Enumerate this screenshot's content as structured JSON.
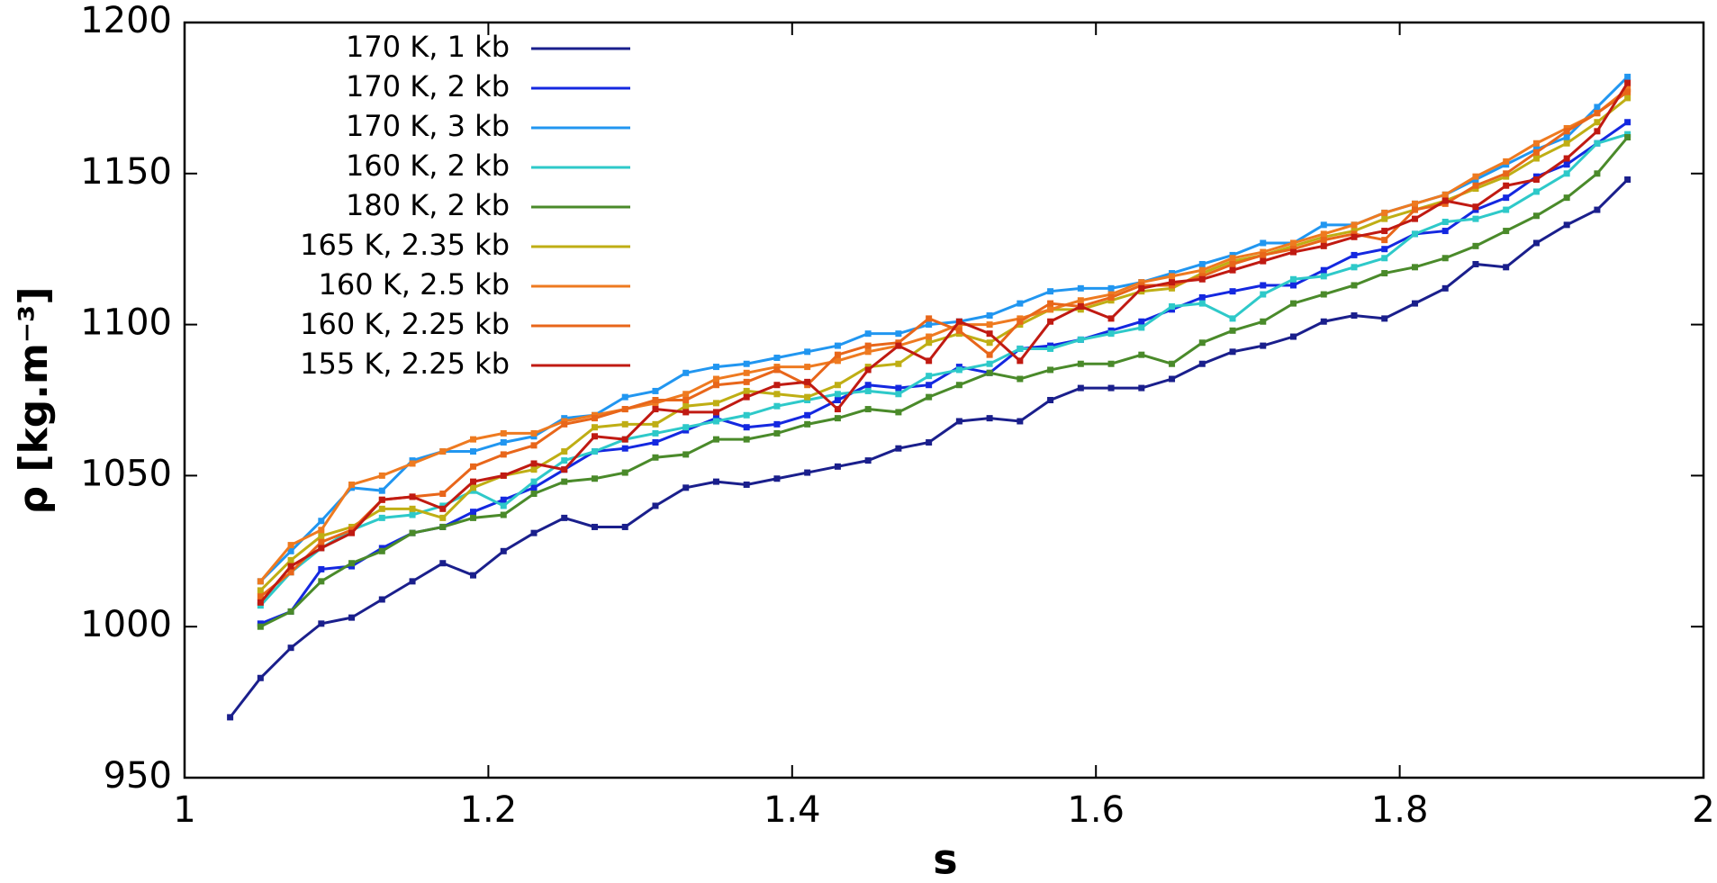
{
  "chart_data": {
    "type": "line",
    "xlabel": "s",
    "ylabel": "ρ [kg.m⁻³]",
    "x": [
      1.03,
      1.05,
      1.07,
      1.09,
      1.11,
      1.13,
      1.15,
      1.17,
      1.19,
      1.21,
      1.23,
      1.25,
      1.27,
      1.29,
      1.31,
      1.33,
      1.35,
      1.37,
      1.39,
      1.41,
      1.43,
      1.45,
      1.47,
      1.49,
      1.51,
      1.53,
      1.55,
      1.57,
      1.59,
      1.61,
      1.63,
      1.65,
      1.67,
      1.69,
      1.71,
      1.73,
      1.75,
      1.77,
      1.79,
      1.81,
      1.83,
      1.85,
      1.87,
      1.89,
      1.91,
      1.93,
      1.95
    ],
    "series": [
      {
        "name": "170 K, 1 kb",
        "color": "#1a1f8c",
        "values": [
          970,
          983,
          993,
          1001,
          1003,
          1009,
          1015,
          1021,
          1017,
          1025,
          1031,
          1036,
          1033,
          1033,
          1040,
          1046,
          1048,
          1047,
          1049,
          1051,
          1053,
          1055,
          1059,
          1061,
          1068,
          1069,
          1068,
          1075,
          1079,
          1079,
          1079,
          1082,
          1087,
          1091,
          1093,
          1096,
          1101,
          1103,
          1102,
          1107,
          1112,
          1120,
          1119,
          1127,
          1133,
          1138,
          1148
        ]
      },
      {
        "name": "170 K, 2 kb",
        "color": "#1428e0",
        "values": [
          null,
          1001,
          1005,
          1019,
          1020,
          1026,
          1031,
          1033,
          1038,
          1042,
          1046,
          1052,
          1058,
          1059,
          1061,
          1065,
          1069,
          1066,
          1067,
          1070,
          1075,
          1080,
          1079,
          1080,
          1086,
          1084,
          1092,
          1093,
          1095,
          1098,
          1101,
          1105,
          1109,
          1111,
          1113,
          1113,
          1118,
          1123,
          1125,
          1130,
          1131,
          1138,
          1142,
          1149,
          1153,
          1160,
          1167
        ]
      },
      {
        "name": "170 K, 3 kb",
        "color": "#2196f0",
        "values": [
          null,
          1015,
          1025,
          1035,
          1046,
          1045,
          1055,
          1058,
          1058,
          1061,
          1063,
          1069,
          1070,
          1076,
          1078,
          1084,
          1086,
          1087,
          1089,
          1091,
          1093,
          1097,
          1097,
          1100,
          1101,
          1103,
          1107,
          1111,
          1112,
          1112,
          1114,
          1117,
          1120,
          1123,
          1127,
          1127,
          1133,
          1133,
          1137,
          1140,
          1143,
          1148,
          1153,
          1158,
          1162,
          1172,
          1182
        ]
      },
      {
        "name": "160 K, 2 kb",
        "color": "#2ec9c9",
        "values": [
          null,
          1007,
          1018,
          1026,
          1032,
          1036,
          1037,
          1040,
          1045,
          1040,
          1048,
          1055,
          1058,
          1062,
          1064,
          1066,
          1068,
          1070,
          1073,
          1075,
          1077,
          1078,
          1077,
          1083,
          1085,
          1087,
          1092,
          1092,
          1095,
          1097,
          1099,
          1106,
          1107,
          1102,
          1110,
          1115,
          1116,
          1119,
          1122,
          1130,
          1134,
          1135,
          1138,
          1144,
          1150,
          1160,
          1163
        ]
      },
      {
        "name": "180 K, 2 kb",
        "color": "#4a8a2a",
        "values": [
          null,
          1000,
          1005,
          1015,
          1021,
          1025,
          1031,
          1033,
          1036,
          1037,
          1044,
          1048,
          1049,
          1051,
          1056,
          1057,
          1062,
          1062,
          1064,
          1067,
          1069,
          1072,
          1071,
          1076,
          1080,
          1084,
          1082,
          1085,
          1087,
          1087,
          1090,
          1087,
          1094,
          1098,
          1101,
          1107,
          1110,
          1113,
          1117,
          1119,
          1122,
          1126,
          1131,
          1136,
          1142,
          1150,
          1162
        ]
      },
      {
        "name": "165 K, 2.35 kb",
        "color": "#bfae14",
        "values": [
          null,
          1012,
          1022,
          1030,
          1033,
          1039,
          1039,
          1036,
          1046,
          1050,
          1052,
          1058,
          1066,
          1067,
          1067,
          1073,
          1074,
          1078,
          1077,
          1076,
          1080,
          1086,
          1087,
          1094,
          1097,
          1094,
          1100,
          1105,
          1105,
          1108,
          1111,
          1112,
          1117,
          1121,
          1123,
          1126,
          1129,
          1131,
          1135,
          1138,
          1141,
          1145,
          1149,
          1155,
          1160,
          1167,
          1175
        ]
      },
      {
        "name": "160 K, 2.5 kb",
        "color": "#ee7a20",
        "values": [
          null,
          1015,
          1027,
          1032,
          1047,
          1050,
          1054,
          1058,
          1062,
          1064,
          1064,
          1068,
          1070,
          1072,
          1074,
          1077,
          1082,
          1084,
          1086,
          1086,
          1088,
          1091,
          1093,
          1096,
          1100,
          1100,
          1102,
          1105,
          1108,
          1110,
          1114,
          1116,
          1118,
          1122,
          1124,
          1127,
          1130,
          1133,
          1137,
          1140,
          1143,
          1149,
          1154,
          1160,
          1165,
          1170,
          1178
        ]
      },
      {
        "name": "160 K, 2.25 kb",
        "color": "#e8661a",
        "values": [
          null,
          1010,
          1018,
          1028,
          1032,
          1042,
          1043,
          1044,
          1053,
          1057,
          1060,
          1067,
          1069,
          1072,
          1075,
          1075,
          1080,
          1081,
          1085,
          1080,
          1090,
          1093,
          1094,
          1102,
          1098,
          1090,
          1101,
          1107,
          1106,
          1109,
          1113,
          1113,
          1116,
          1120,
          1123,
          1125,
          1128,
          1130,
          1128,
          1138,
          1140,
          1146,
          1150,
          1157,
          1164,
          1170,
          1177
        ]
      },
      {
        "name": "155 K, 2.25 kb",
        "color": "#c01a12",
        "values": [
          null,
          1008,
          1020,
          1026,
          1031,
          1042,
          1043,
          1039,
          1048,
          1050,
          1054,
          1052,
          1063,
          1062,
          1072,
          1071,
          1071,
          1076,
          1080,
          1081,
          1072,
          1085,
          1093,
          1088,
          1101,
          1097,
          1088,
          1101,
          1106,
          1102,
          1112,
          1114,
          1115,
          1118,
          1121,
          1124,
          1126,
          1129,
          1131,
          1135,
          1141,
          1139,
          1146,
          1148,
          1155,
          1164,
          1180
        ]
      }
    ],
    "xlim": [
      1,
      2
    ],
    "xticks": [
      1,
      1.2,
      1.4,
      1.6,
      1.8,
      2
    ],
    "ylim": [
      950,
      1200
    ],
    "yticks": [
      950,
      1000,
      1050,
      1100,
      1150,
      1200
    ],
    "grid": false,
    "legend": "top-left"
  }
}
